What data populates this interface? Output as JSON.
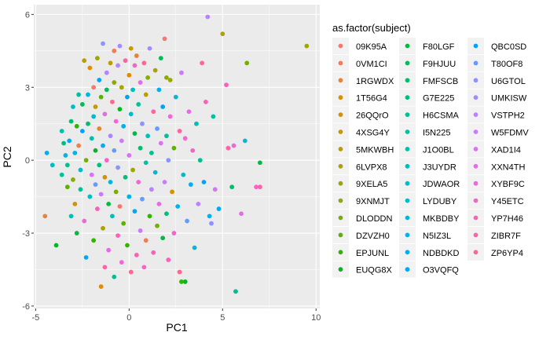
{
  "chart_data": {
    "type": "scatter",
    "xlabel": "PC1",
    "ylabel": "PC2",
    "xlim": [
      -5.1,
      10.2
    ],
    "ylim": [
      -6.1,
      6.4
    ],
    "x_ticks": [
      -5,
      0,
      5,
      10
    ],
    "y_ticks": [
      -6,
      -3,
      0,
      3,
      6
    ],
    "x_tick_labels": [
      "-5",
      "0",
      "5",
      "10"
    ],
    "y_tick_labels": [
      "-6",
      "-3",
      "0",
      "3",
      "6"
    ],
    "grid": true,
    "legend_position": "right",
    "legend_title": "as.factor(subject)",
    "legend_labels": [
      "09K95A",
      "0VM1CI",
      "1RGWDX",
      "1T56G4",
      "26QQrO",
      "4XSG4Y",
      "5MKWBH",
      "6LVPX8",
      "9XELA5",
      "9XNMJT",
      "DLODDN",
      "DZVZH0",
      "EPJUNL",
      "EUQG8X",
      "F80LGF",
      "F9HJUU",
      "FMFSCB",
      "G7E225",
      "H6CSMA",
      "I5N225",
      "J1O0BL",
      "J3UYDR",
      "JDWAOR",
      "LYDUBY",
      "MKBDBY",
      "N5IZ3L",
      "NDBDKD",
      "O3VQFQ",
      "QBC0SD",
      "T80OF8",
      "U6GTOL",
      "UMKISW",
      "VSTPH2",
      "W5FDMV",
      "XAD1I4",
      "XXN4TH",
      "XYBF9C",
      "Y45ETC",
      "YP7H46",
      "ZIBR7F",
      "ZP6YP4"
    ],
    "legend_colors": [
      "#F8766D",
      "#F27D52",
      "#EA8331",
      "#E08B00",
      "#D59100",
      "#C99800",
      "#BC9D00",
      "#AEA200",
      "#9DA700",
      "#8BAB00",
      "#75AF00",
      "#5BB300",
      "#31B600",
      "#00B81F",
      "#00BA42",
      "#00BC59",
      "#00BE6C",
      "#00BF7D",
      "#00C08D",
      "#00C19C",
      "#00C0AB",
      "#00BFB8",
      "#00BDC4",
      "#00BBD0",
      "#00B8DB",
      "#00B4E5",
      "#00AFEE",
      "#00A9F6",
      "#00A2FC",
      "#619CFF",
      "#8A94FF",
      "#A58AFF",
      "#B983FF",
      "#CB7BF9",
      "#D973F1",
      "#E56CE6",
      "#EF67D9",
      "#F763CA",
      "#FB61B9",
      "#FF62A5",
      "#FF6691"
    ],
    "points": [
      {
        "x": -4.4,
        "y": 0.3,
        "g": 26
      },
      {
        "x": -4.1,
        "y": -0.2,
        "g": 22
      },
      {
        "x": -4.5,
        "y": -2.3,
        "g": 2
      },
      {
        "x": -3.9,
        "y": -3.5,
        "g": 13
      },
      {
        "x": -3.6,
        "y": 1.2,
        "g": 20
      },
      {
        "x": -3.6,
        "y": -0.6,
        "g": 19
      },
      {
        "x": -3.5,
        "y": 0.7,
        "g": 17
      },
      {
        "x": -3.4,
        "y": 0.2,
        "g": 24
      },
      {
        "x": -3.3,
        "y": -1.1,
        "g": 11
      },
      {
        "x": -3.3,
        "y": -0.2,
        "g": 18
      },
      {
        "x": -3.2,
        "y": 0.8,
        "g": 27
      },
      {
        "x": -3.1,
        "y": 1.6,
        "g": 16
      },
      {
        "x": -3.1,
        "y": -2.3,
        "g": 21
      },
      {
        "x": -3.0,
        "y": 2.2,
        "g": 22
      },
      {
        "x": -3.0,
        "y": -0.8,
        "g": 9
      },
      {
        "x": -2.9,
        "y": 0.3,
        "g": 25
      },
      {
        "x": -2.9,
        "y": -1.8,
        "g": 4
      },
      {
        "x": -2.8,
        "y": 1.4,
        "g": 12
      },
      {
        "x": -2.8,
        "y": -3.0,
        "g": 14
      },
      {
        "x": -2.7,
        "y": 2.7,
        "g": 19
      },
      {
        "x": -2.7,
        "y": 0.6,
        "g": 1
      },
      {
        "x": -2.6,
        "y": -0.4,
        "g": 23
      },
      {
        "x": -2.6,
        "y": -1.2,
        "g": 18
      },
      {
        "x": -2.5,
        "y": 2.3,
        "g": 15
      },
      {
        "x": -2.5,
        "y": 1.2,
        "g": 28
      },
      {
        "x": -2.4,
        "y": 4.1,
        "g": 6
      },
      {
        "x": -2.4,
        "y": -2.5,
        "g": 36
      },
      {
        "x": -2.3,
        "y": 0.0,
        "g": 10
      },
      {
        "x": -2.3,
        "y": -4.0,
        "g": 27
      },
      {
        "x": -2.2,
        "y": 2.7,
        "g": 25
      },
      {
        "x": -2.2,
        "y": 1.5,
        "g": 16
      },
      {
        "x": -2.1,
        "y": 3.8,
        "g": 3
      },
      {
        "x": -2.1,
        "y": -1.5,
        "g": 22
      },
      {
        "x": -2.0,
        "y": 0.9,
        "g": 20
      },
      {
        "x": -2.0,
        "y": -0.6,
        "g": 34
      },
      {
        "x": -1.9,
        "y": 3.0,
        "g": 0
      },
      {
        "x": -1.9,
        "y": 1.8,
        "g": 23
      },
      {
        "x": -1.9,
        "y": -3.3,
        "g": 12
      },
      {
        "x": -1.8,
        "y": 2.2,
        "g": 5
      },
      {
        "x": -1.8,
        "y": 0.4,
        "g": 13
      },
      {
        "x": -1.8,
        "y": -1.0,
        "g": 29
      },
      {
        "x": -1.7,
        "y": 4.2,
        "g": 8
      },
      {
        "x": -1.7,
        "y": -2.0,
        "g": 38
      },
      {
        "x": -1.6,
        "y": 3.3,
        "g": 28
      },
      {
        "x": -1.6,
        "y": 1.3,
        "g": 2
      },
      {
        "x": -1.6,
        "y": -0.2,
        "g": 17
      },
      {
        "x": -1.5,
        "y": 2.6,
        "g": 11
      },
      {
        "x": -1.5,
        "y": -1.4,
        "g": 33
      },
      {
        "x": -1.5,
        "y": -5.2,
        "g": 3
      },
      {
        "x": -1.4,
        "y": 4.8,
        "g": 30
      },
      {
        "x": -1.4,
        "y": 0.6,
        "g": 26
      },
      {
        "x": -1.4,
        "y": -2.8,
        "g": 7
      },
      {
        "x": -1.3,
        "y": 1.9,
        "g": 35
      },
      {
        "x": -1.3,
        "y": -0.7,
        "g": 4
      },
      {
        "x": -1.3,
        "y": -4.4,
        "g": 39
      },
      {
        "x": -1.2,
        "y": 3.6,
        "g": 32
      },
      {
        "x": -1.2,
        "y": 2.9,
        "g": 15
      },
      {
        "x": -1.2,
        "y": 0.0,
        "g": 37
      },
      {
        "x": -1.1,
        "y": -1.8,
        "g": 14
      },
      {
        "x": -1.1,
        "y": -3.7,
        "g": 35
      },
      {
        "x": -1.0,
        "y": 4.0,
        "g": 6
      },
      {
        "x": -1.0,
        "y": 1.0,
        "g": 31
      },
      {
        "x": -1.0,
        "y": -0.9,
        "g": 24
      },
      {
        "x": -0.9,
        "y": 2.4,
        "g": 40
      },
      {
        "x": -0.9,
        "y": -2.3,
        "g": 21
      },
      {
        "x": -0.8,
        "y": 4.5,
        "g": 1
      },
      {
        "x": -0.8,
        "y": 3.2,
        "g": 9
      },
      {
        "x": -0.8,
        "y": 0.4,
        "g": 29
      },
      {
        "x": -0.8,
        "y": -4.8,
        "g": 18
      },
      {
        "x": -0.7,
        "y": 1.6,
        "g": 36
      },
      {
        "x": -0.7,
        "y": -1.3,
        "g": 10
      },
      {
        "x": -0.6,
        "y": 3.9,
        "g": 32
      },
      {
        "x": -0.6,
        "y": -0.3,
        "g": 30
      },
      {
        "x": -0.6,
        "y": -3.1,
        "g": 38
      },
      {
        "x": -0.5,
        "y": 4.7,
        "g": 31
      },
      {
        "x": -0.5,
        "y": 2.1,
        "g": 13
      },
      {
        "x": -0.5,
        "y": -1.9,
        "g": 0
      },
      {
        "x": -0.4,
        "y": 3.0,
        "g": 7
      },
      {
        "x": -0.4,
        "y": 0.8,
        "g": 33
      },
      {
        "x": -0.4,
        "y": -4.2,
        "g": 36
      },
      {
        "x": -0.3,
        "y": 1.4,
        "g": 25
      },
      {
        "x": -0.3,
        "y": -2.6,
        "g": 11
      },
      {
        "x": -0.2,
        "y": 4.1,
        "g": 39
      },
      {
        "x": -0.2,
        "y": -0.7,
        "g": 17
      },
      {
        "x": -0.1,
        "y": 2.6,
        "g": 28
      },
      {
        "x": -0.1,
        "y": -3.5,
        "g": 12
      },
      {
        "x": 0.0,
        "y": 3.5,
        "g": 3
      },
      {
        "x": 0.0,
        "y": 0.2,
        "g": 34
      },
      {
        "x": 0.0,
        "y": -1.5,
        "g": 26
      },
      {
        "x": 0.1,
        "y": 4.6,
        "g": 5
      },
      {
        "x": 0.1,
        "y": 1.9,
        "g": 23
      },
      {
        "x": 0.1,
        "y": -4.6,
        "g": 40
      },
      {
        "x": 0.2,
        "y": 2.9,
        "g": 22
      },
      {
        "x": 0.2,
        "y": -0.4,
        "g": 8
      },
      {
        "x": 0.3,
        "y": 3.9,
        "g": 37
      },
      {
        "x": 0.3,
        "y": 1.1,
        "g": 14
      },
      {
        "x": 0.3,
        "y": -2.1,
        "g": 27
      },
      {
        "x": 0.4,
        "y": 4.3,
        "g": 2
      },
      {
        "x": 0.4,
        "y": -3.9,
        "g": 38
      },
      {
        "x": 0.5,
        "y": 2.3,
        "g": 19
      },
      {
        "x": 0.5,
        "y": -0.9,
        "g": 36
      },
      {
        "x": 0.6,
        "y": 3.2,
        "g": 35
      },
      {
        "x": 0.6,
        "y": 0.5,
        "g": 16
      },
      {
        "x": 0.6,
        "y": -2.9,
        "g": 33
      },
      {
        "x": 0.7,
        "y": 1.5,
        "g": 30
      },
      {
        "x": 0.7,
        "y": -1.6,
        "g": 29
      },
      {
        "x": 0.8,
        "y": 4.0,
        "g": 40
      },
      {
        "x": 0.8,
        "y": -4.4,
        "g": 37
      },
      {
        "x": 0.9,
        "y": 2.7,
        "g": 6
      },
      {
        "x": 0.9,
        "y": -0.1,
        "g": 20
      },
      {
        "x": 0.9,
        "y": -3.3,
        "g": 1
      },
      {
        "x": 1.0,
        "y": 3.4,
        "g": 9
      },
      {
        "x": 1.0,
        "y": 1.0,
        "g": 21
      },
      {
        "x": 1.1,
        "y": -2.3,
        "g": 12
      },
      {
        "x": 1.1,
        "y": 4.6,
        "g": 31
      },
      {
        "x": 1.2,
        "y": 0.3,
        "g": 18
      },
      {
        "x": 1.2,
        "y": -1.2,
        "g": 32
      },
      {
        "x": 1.3,
        "y": 2.0,
        "g": 39
      },
      {
        "x": 1.3,
        "y": -3.8,
        "g": 38
      },
      {
        "x": 1.4,
        "y": 3.7,
        "g": 7
      },
      {
        "x": 1.4,
        "y": -0.5,
        "g": 24
      },
      {
        "x": 1.5,
        "y": 1.3,
        "g": 29
      },
      {
        "x": 1.5,
        "y": -2.7,
        "g": 10
      },
      {
        "x": 1.6,
        "y": 2.9,
        "g": 26
      },
      {
        "x": 1.6,
        "y": -1.8,
        "g": 35
      },
      {
        "x": 1.7,
        "y": 4.2,
        "g": 15
      },
      {
        "x": 1.7,
        "y": 0.7,
        "g": 34
      },
      {
        "x": 1.8,
        "y": -3.2,
        "g": 14
      },
      {
        "x": 1.8,
        "y": 2.2,
        "g": 28
      },
      {
        "x": 1.9,
        "y": -0.9,
        "g": 33
      },
      {
        "x": 1.9,
        "y": 5.0,
        "g": 0
      },
      {
        "x": 2.0,
        "y": 3.4,
        "g": 9
      },
      {
        "x": 2.0,
        "y": 1.0,
        "g": 19
      },
      {
        "x": 2.0,
        "y": -2.2,
        "g": 17
      },
      {
        "x": 2.1,
        "y": 0.0,
        "g": 30
      },
      {
        "x": 2.1,
        "y": -4.1,
        "g": 38
      },
      {
        "x": 2.2,
        "y": 3.3,
        "g": 8
      },
      {
        "x": 2.2,
        "y": 1.8,
        "g": 36
      },
      {
        "x": 2.3,
        "y": -1.3,
        "g": 4
      },
      {
        "x": 2.4,
        "y": 0.5,
        "g": 11
      },
      {
        "x": 2.4,
        "y": -3.0,
        "g": 37
      },
      {
        "x": 2.5,
        "y": 2.6,
        "g": 23
      },
      {
        "x": 2.6,
        "y": -1.9,
        "g": 25
      },
      {
        "x": 2.7,
        "y": 1.2,
        "g": 39
      },
      {
        "x": 2.7,
        "y": -4.6,
        "g": 40
      },
      {
        "x": 2.8,
        "y": -5.0,
        "g": 12
      },
      {
        "x": 2.8,
        "y": 3.6,
        "g": 33
      },
      {
        "x": 2.9,
        "y": -0.6,
        "g": 22
      },
      {
        "x": 3.0,
        "y": 0.9,
        "g": 36
      },
      {
        "x": 3.0,
        "y": -5.0,
        "g": 13
      },
      {
        "x": 3.1,
        "y": -2.5,
        "g": 29
      },
      {
        "x": 3.2,
        "y": 2.0,
        "g": 35
      },
      {
        "x": 3.3,
        "y": -1.0,
        "g": 26
      },
      {
        "x": 3.4,
        "y": 0.4,
        "g": 37
      },
      {
        "x": 3.5,
        "y": -3.6,
        "g": 24
      },
      {
        "x": 3.6,
        "y": 1.5,
        "g": 21
      },
      {
        "x": 3.7,
        "y": -1.8,
        "g": 32
      },
      {
        "x": 3.8,
        "y": 0.0,
        "g": 18
      },
      {
        "x": 3.9,
        "y": 4.0,
        "g": 40
      },
      {
        "x": 4.0,
        "y": -0.9,
        "g": 28
      },
      {
        "x": 4.1,
        "y": 2.4,
        "g": 38
      },
      {
        "x": 4.2,
        "y": 5.9,
        "g": 32
      },
      {
        "x": 4.3,
        "y": -2.3,
        "g": 26
      },
      {
        "x": 4.4,
        "y": -2.6,
        "g": 30
      },
      {
        "x": 4.5,
        "y": 1.8,
        "g": 20
      },
      {
        "x": 4.6,
        "y": -1.2,
        "g": 34
      },
      {
        "x": 4.8,
        "y": -2.0,
        "g": 27
      },
      {
        "x": 5.0,
        "y": 5.2,
        "g": 7
      },
      {
        "x": 5.2,
        "y": 3.1,
        "g": 38
      },
      {
        "x": 5.3,
        "y": 0.5,
        "g": 39
      },
      {
        "x": 5.5,
        "y": -1.1,
        "g": 16
      },
      {
        "x": 5.6,
        "y": 0.6,
        "g": 36
      },
      {
        "x": 5.7,
        "y": -5.4,
        "g": 18
      },
      {
        "x": 6.0,
        "y": -2.2,
        "g": 35
      },
      {
        "x": 6.3,
        "y": 4.0,
        "g": 10
      },
      {
        "x": 6.8,
        "y": -1.1,
        "g": 37
      },
      {
        "x": 7.0,
        "y": -0.1,
        "g": 14
      },
      {
        "x": 7.0,
        "y": -1.1,
        "g": 39
      },
      {
        "x": 6.2,
        "y": 0.8,
        "g": 23
      },
      {
        "x": 9.5,
        "y": 4.7,
        "g": 8
      }
    ]
  }
}
